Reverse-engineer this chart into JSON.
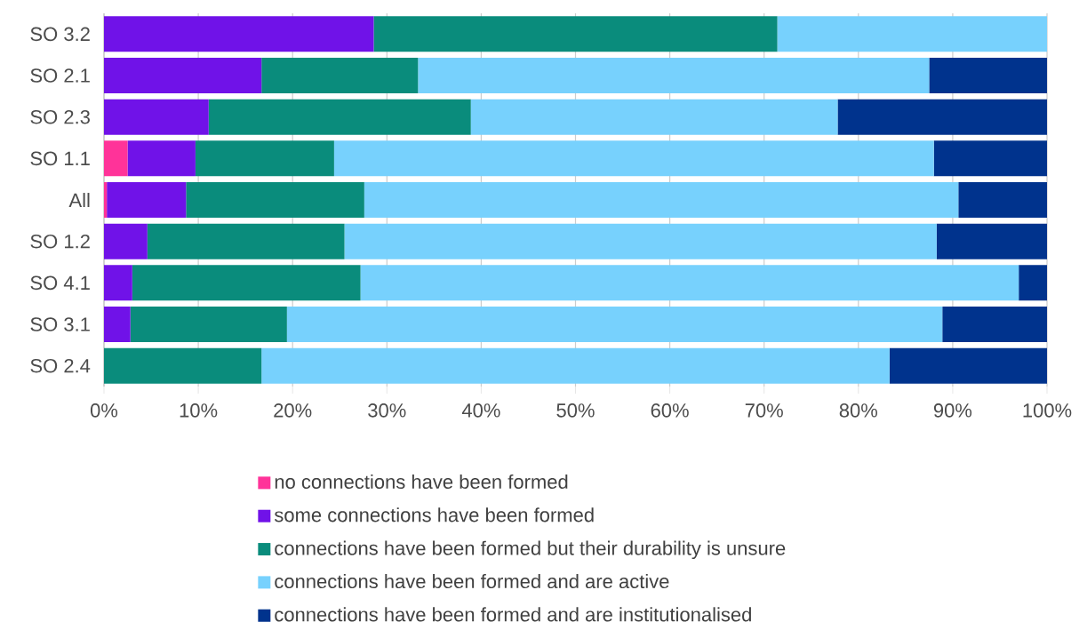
{
  "chart_data": {
    "type": "bar",
    "orientation": "horizontal",
    "stacked": true,
    "categories": [
      "SO 3.2",
      "SO 2.1",
      "SO 2.3",
      "SO 1.1",
      "All",
      "SO 1.2",
      "SO 4.1",
      "SO 3.1",
      "SO 2.4"
    ],
    "series": [
      {
        "name": "no connections have been formed",
        "color": "#ff3399",
        "values": [
          0,
          0,
          0,
          2.5,
          0.3,
          0,
          0,
          0,
          0
        ]
      },
      {
        "name": "some connections have been formed",
        "color": "#7012e8",
        "values": [
          28.6,
          16.7,
          11.1,
          7.2,
          8.4,
          4.6,
          3.0,
          2.8,
          0
        ]
      },
      {
        "name": "connections have been formed but their durability is unsure",
        "color": "#0a8c7c",
        "values": [
          42.8,
          16.6,
          27.8,
          14.7,
          18.9,
          20.9,
          24.2,
          16.6,
          16.7
        ]
      },
      {
        "name": "connections have been formed and are active",
        "color": "#77d1fd",
        "values": [
          28.6,
          54.2,
          38.9,
          63.6,
          63.0,
          62.8,
          69.8,
          69.5,
          66.6
        ]
      },
      {
        "name": "connections have been formed and are institutionalised",
        "color": "#00338d",
        "values": [
          0,
          12.5,
          22.2,
          12.0,
          9.4,
          11.7,
          3.0,
          11.1,
          16.7
        ]
      }
    ],
    "xlim": [
      0,
      100
    ],
    "xticks": [
      {
        "value": 0,
        "label": "0%"
      },
      {
        "value": 10,
        "label": "10%"
      },
      {
        "value": 20,
        "label": "20%"
      },
      {
        "value": 30,
        "label": "30%"
      },
      {
        "value": 40,
        "label": "40%"
      },
      {
        "value": 50,
        "label": "50%"
      },
      {
        "value": 60,
        "label": "60%"
      },
      {
        "value": 70,
        "label": "70%"
      },
      {
        "value": 80,
        "label": "80%"
      },
      {
        "value": 90,
        "label": "90%"
      },
      {
        "value": 100,
        "label": "100%"
      }
    ],
    "grid": "x",
    "legend": "bottom"
  }
}
